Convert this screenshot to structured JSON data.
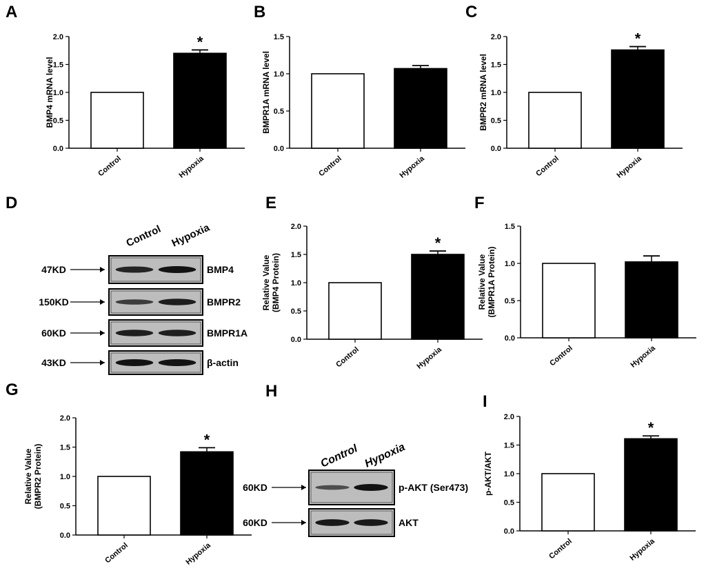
{
  "chart_data": [
    {
      "letter": "A",
      "type": "bar",
      "categories": [
        "Control",
        "Hypoxia"
      ],
      "values": [
        1.0,
        1.7
      ],
      "errors": [
        0,
        0.06
      ],
      "significance": [
        "",
        "*"
      ],
      "ylabel": "BMP4 mRNA level",
      "ylabel_lines": [
        "BMP4 mRNA level"
      ],
      "ylim": [
        0,
        2.0
      ],
      "yticks": [
        "0.0",
        "0.5",
        "1.0",
        "1.5",
        "2.0"
      ],
      "colors": [
        "#ffffff",
        "#000000"
      ]
    },
    {
      "letter": "B",
      "type": "bar",
      "categories": [
        "Control",
        "Hypoxia"
      ],
      "values": [
        1.0,
        1.07
      ],
      "errors": [
        0,
        0.04
      ],
      "significance": [
        "",
        ""
      ],
      "ylabel": "BMPR1A mRNA level",
      "ylabel_lines": [
        "BMPR1A mRNA level"
      ],
      "ylim": [
        0,
        1.5
      ],
      "yticks": [
        "0.0",
        "0.5",
        "1.0",
        "1.5"
      ],
      "colors": [
        "#ffffff",
        "#000000"
      ]
    },
    {
      "letter": "C",
      "type": "bar",
      "categories": [
        "Control",
        "Hypoxia"
      ],
      "values": [
        1.0,
        1.76
      ],
      "errors": [
        0,
        0.06
      ],
      "significance": [
        "",
        "*"
      ],
      "ylabel": "BMPR2 mRNA level",
      "ylabel_lines": [
        "BMPR2 mRNA level"
      ],
      "ylim": [
        0,
        2.0
      ],
      "yticks": [
        "0.0",
        "0.5",
        "1.0",
        "1.5",
        "2.0"
      ],
      "colors": [
        "#ffffff",
        "#000000"
      ]
    },
    {
      "letter": "E",
      "type": "bar",
      "categories": [
        "Control",
        "Hypoxia"
      ],
      "values": [
        1.0,
        1.5
      ],
      "errors": [
        0,
        0.06
      ],
      "significance": [
        "",
        "*"
      ],
      "ylabel": "Relative Value (BMP4 Protein)",
      "ylabel_lines": [
        "Relative Value",
        "(BMP4 Protein)"
      ],
      "ylim": [
        0,
        2.0
      ],
      "yticks": [
        "0.0",
        "0.5",
        "1.0",
        "1.5",
        "2.0"
      ],
      "colors": [
        "#ffffff",
        "#000000"
      ]
    },
    {
      "letter": "F",
      "type": "bar",
      "categories": [
        "Control",
        "Hypoxia"
      ],
      "values": [
        1.0,
        1.02
      ],
      "errors": [
        0,
        0.08
      ],
      "significance": [
        "",
        ""
      ],
      "ylabel": "Relative Value (BMPR1A Protein)",
      "ylabel_lines": [
        "Relative Value",
        "(BMPR1A Protein)"
      ],
      "ylim": [
        0,
        1.5
      ],
      "yticks": [
        "0.0",
        "0.5",
        "1.0",
        "1.5"
      ],
      "colors": [
        "#ffffff",
        "#000000"
      ]
    },
    {
      "letter": "G",
      "type": "bar",
      "categories": [
        "Control",
        "Hypoxia"
      ],
      "values": [
        1.0,
        1.42
      ],
      "errors": [
        0,
        0.07
      ],
      "significance": [
        "",
        "*"
      ],
      "ylabel": "Relative Value (BMPR2 Protein)",
      "ylabel_lines": [
        "Relative Value",
        "(BMPR2 Protein)"
      ],
      "ylim": [
        0,
        2.0
      ],
      "yticks": [
        "0.0",
        "0.5",
        "1.0",
        "1.5",
        "2.0"
      ],
      "colors": [
        "#ffffff",
        "#000000"
      ]
    },
    {
      "letter": "I",
      "type": "bar",
      "categories": [
        "Control",
        "Hypoxia"
      ],
      "values": [
        1.0,
        1.61
      ],
      "errors": [
        0,
        0.05
      ],
      "significance": [
        "",
        "*"
      ],
      "ylabel": "p-AKT/AKT",
      "ylabel_lines": [
        "p-AKT/AKT"
      ],
      "ylim": [
        0,
        2.0
      ],
      "yticks": [
        "0.0",
        "0.5",
        "1.0",
        "1.5",
        "2.0"
      ],
      "colors": [
        "#ffffff",
        "#000000"
      ]
    }
  ],
  "blots": [
    {
      "letter": "D",
      "headers": [
        "Control",
        "Hypoxia"
      ],
      "rows": [
        {
          "marker": "47KD",
          "label": "BMP4",
          "intensity": [
            0.85,
            1.0
          ]
        },
        {
          "marker": "150KD",
          "label": "BMPR2",
          "intensity": [
            0.6,
            0.9
          ]
        },
        {
          "marker": "60KD",
          "label": "BMPR1A",
          "intensity": [
            0.9,
            0.9
          ]
        },
        {
          "marker": "43KD",
          "label": "β-actin",
          "intensity": [
            1.0,
            1.0
          ]
        }
      ]
    },
    {
      "letter": "H",
      "headers": [
        "Control",
        "Hypoxia"
      ],
      "rows": [
        {
          "marker": "60KD",
          "label": "p-AKT (Ser473)",
          "intensity": [
            0.45,
            1.0
          ]
        },
        {
          "marker": "60KD",
          "label": "AKT",
          "intensity": [
            0.95,
            0.95
          ]
        }
      ]
    }
  ]
}
